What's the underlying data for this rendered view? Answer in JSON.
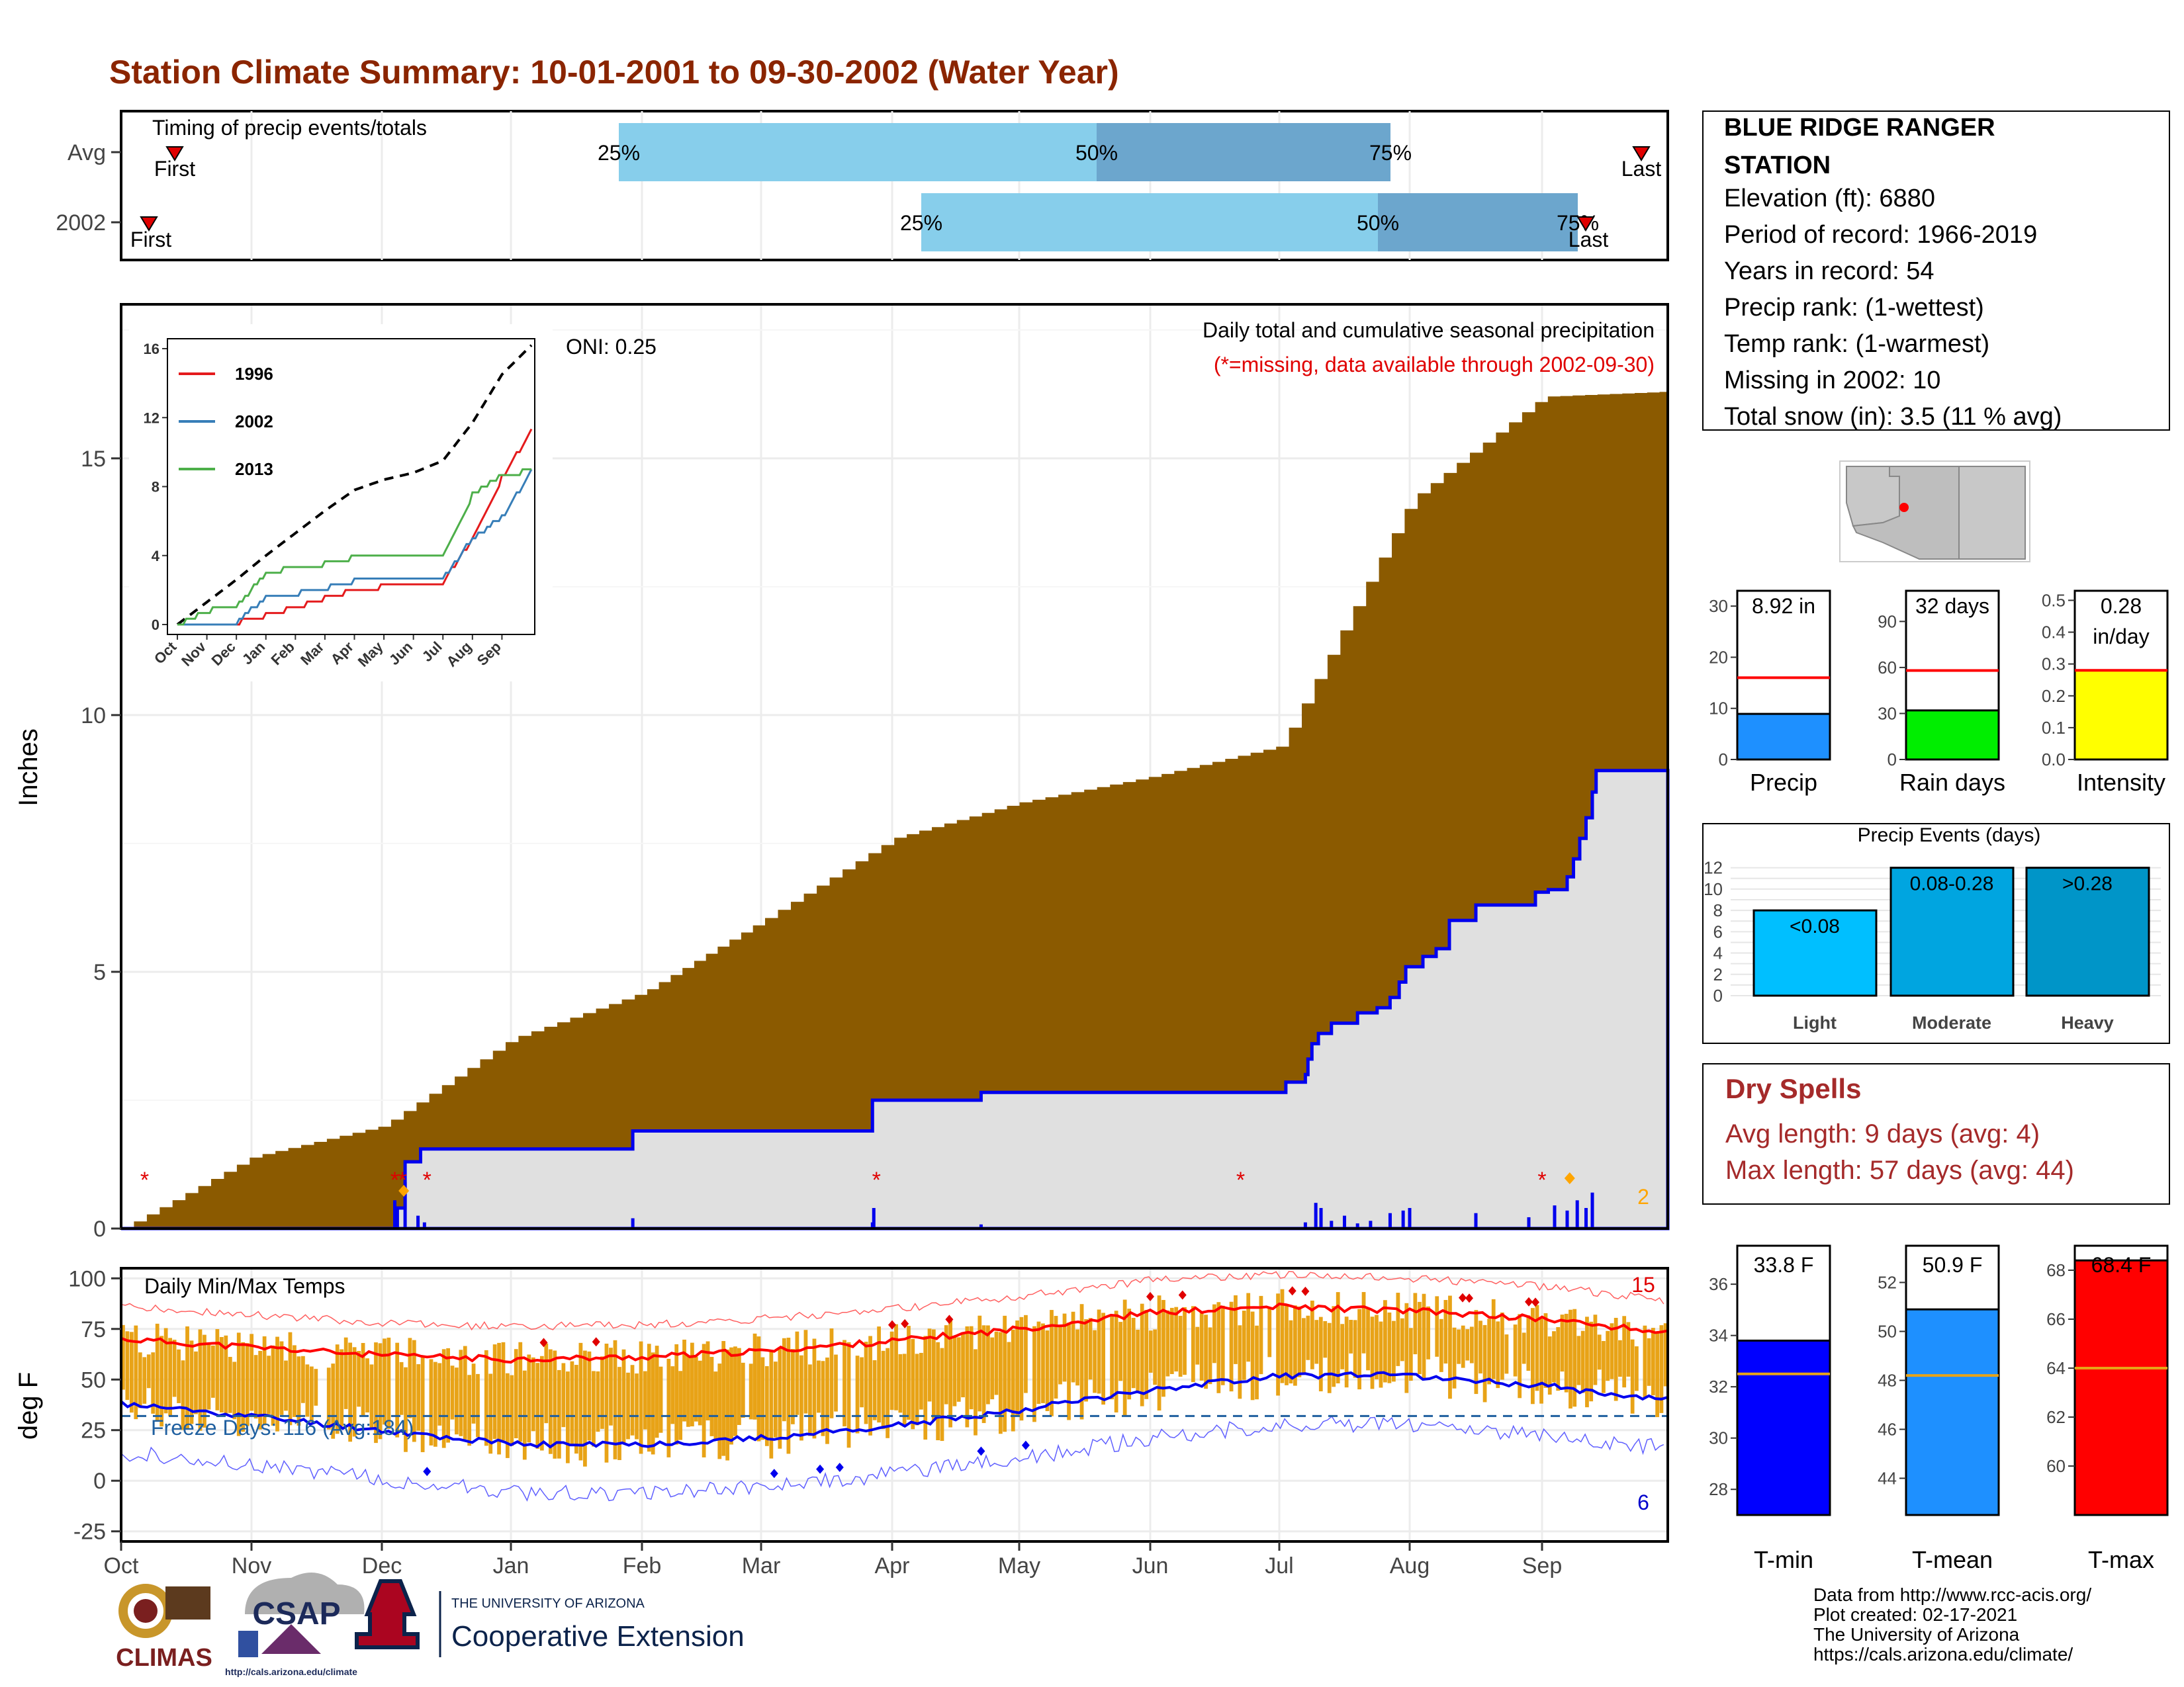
{
  "title": "Station Climate Summary: 10-01-2001 to 09-30-2002 (Water Year)",
  "colors": {
    "title": "#8B2500",
    "brown": "#8B5A00",
    "grey": "#E0E0E0",
    "blue": "#0000EE",
    "lightblue": "#87CEEB",
    "midblue": "#6CA6CD",
    "orange": "#E8A317",
    "red": "#FF0000"
  },
  "timing": {
    "label": "Timing of precip events/totals",
    "rows": [
      "Avg",
      "2002"
    ],
    "first_label": "First",
    "last_label": "Last",
    "pct_labels": [
      "25%",
      "50%",
      "75%"
    ]
  },
  "station": {
    "name": "BLUE RIDGE RANGER",
    "name2": "STATION",
    "lines": [
      "Elevation (ft): 6880",
      "Period of record: 1966-2019",
      "Years in record: 54",
      "Precip rank:  (1-wettest)",
      "Temp rank:  (1-warmest)",
      "Missing in 2002: 10",
      "Total snow (in): 3.5 (11 % avg)"
    ]
  },
  "main_panel": {
    "ylabel": "Inches",
    "oni": "ONI: 0.25",
    "desc1": "Daily total and cumulative seasonal precipitation",
    "desc2": "(*=missing, data available through 2002-09-30)",
    "yticks": [
      "0",
      "5",
      "10",
      "15"
    ],
    "count_label": "2"
  },
  "inset": {
    "series_names": [
      "1996",
      "2002",
      "2013"
    ],
    "yticks": [
      "0",
      "4",
      "8",
      "12",
      "16"
    ],
    "months": [
      "Oct",
      "Nov",
      "Dec",
      "Jan",
      "Feb",
      "Mar",
      "Apr",
      "May",
      "Jun",
      "Jul",
      "Aug",
      "Sep"
    ]
  },
  "temp_panel": {
    "ylabel": "deg F",
    "label": "Daily Min/Max Temps",
    "freeze": "Freeze Days: 116 (Avg:184)",
    "yticks": [
      "100",
      "75",
      "50",
      "25",
      "0",
      "-25"
    ],
    "max_count": "15",
    "min_count": "6"
  },
  "x_months": [
    "Oct",
    "Nov",
    "Dec",
    "Jan",
    "Feb",
    "Mar",
    "Apr",
    "May",
    "Jun",
    "Jul",
    "Aug",
    "Sep"
  ],
  "bars_precip": {
    "value_label": "8.92 in",
    "axis_label": "Precip",
    "ticks": [
      "0",
      "10",
      "20",
      "30"
    ]
  },
  "bars_raindays": {
    "value_label": "32 days",
    "axis_label": "Rain days",
    "ticks": [
      "0",
      "30",
      "60",
      "90"
    ]
  },
  "bars_intensity": {
    "value_label": "0.28",
    "value_label2": "in/day",
    "axis_label": "Intensity",
    "ticks": [
      "0.0",
      "0.1",
      "0.2",
      "0.3",
      "0.4",
      "0.5"
    ]
  },
  "events": {
    "title": "Precip Events (days)",
    "cats": [
      "Light",
      "Moderate",
      "Heavy"
    ],
    "labels": [
      "<0.08",
      "0.08-0.28",
      ">0.28"
    ],
    "ticks": [
      "0",
      "2",
      "4",
      "6",
      "8",
      "10",
      "12"
    ]
  },
  "dry": {
    "title": "Dry Spells",
    "line1": "Avg length: 9 days (avg: 4)",
    "line2": "Max length: 57 days (avg: 44)"
  },
  "tbars": [
    {
      "label": "T-min",
      "value_label": "33.8 F",
      "ticks": [
        "28",
        "30",
        "32",
        "34",
        "36"
      ]
    },
    {
      "label": "T-mean",
      "value_label": "50.9 F",
      "ticks": [
        "44",
        "46",
        "48",
        "50",
        "52"
      ]
    },
    {
      "label": "T-max",
      "value_label": "68.4 F",
      "ticks": [
        "60",
        "62",
        "64",
        "66",
        "68"
      ]
    }
  ],
  "credits": [
    "Data from http://www.rcc-acis.org/",
    "Plot created: 02-17-2021",
    "The University of Arizona",
    "https://cals.arizona.edu/climate/"
  ],
  "logos": {
    "climas": "CLIMAS",
    "csap": "CSAP",
    "csap_url": "http://cals.arizona.edu/climate",
    "ua_small": "THE UNIVERSITY OF ARIZONA",
    "ua_big": "Cooperative Extension"
  },
  "chart_data": [
    {
      "type": "area",
      "title": "Daily total and cumulative seasonal precipitation",
      "ylabel": "Inches",
      "ylim": [
        0,
        18
      ],
      "x": [
        "Oct",
        "Nov",
        "Dec",
        "Jan",
        "Feb",
        "Mar",
        "Apr",
        "May",
        "Jun",
        "Jul",
        "Aug",
        "Sep",
        "Sep-30"
      ],
      "series": [
        {
          "name": "",
          "values": [
            0,
            1.4,
            2.0,
            3.7,
            4.6,
            6.0,
            7.6,
            8.3,
            8.8,
            9.4,
            14.2,
            16.2,
            16.3
          ]
        },
        {
          "name": "",
          "values": [
            0,
            0,
            0,
            1.55,
            1.9,
            2.0,
            2.5,
            2.6,
            2.6,
            2.6,
            5.0,
            6.2,
            8.92
          ]
        }
      ]
    },
    {
      "type": "line",
      "title": "",
      "ylim": [
        0,
        16
      ],
      "x": [
        "Oct",
        "Nov",
        "Dec",
        "Jan",
        "Feb",
        "Mar",
        "Apr",
        "May",
        "Jun",
        "Jul",
        "Aug",
        "Sep",
        "Sep-30"
      ],
      "series": [
        {
          "name": "",
          "values": [
            0,
            1.3,
            2.6,
            4.0,
            5.3,
            6.6,
            7.8,
            8.4,
            8.8,
            9.5,
            11.7,
            14.5,
            16.2
          ]
        },
        {
          "name": "1996",
          "values": [
            0,
            0,
            0.1,
            0.5,
            1.0,
            1.5,
            2.0,
            2.2,
            2.3,
            2.4,
            5.0,
            8.5,
            11.2
          ]
        },
        {
          "name": "2002",
          "values": [
            0,
            0,
            0.1,
            1.6,
            1.8,
            2.1,
            2.5,
            2.6,
            2.6,
            2.6,
            5.0,
            6.2,
            8.9
          ]
        },
        {
          "name": "2013",
          "values": [
            0,
            0.8,
            1.0,
            3.0,
            3.3,
            3.5,
            3.9,
            3.9,
            3.9,
            4.0,
            7.5,
            8.7,
            8.9
          ]
        }
      ]
    },
    {
      "type": "line",
      "title": "Daily Min/Max Temps",
      "ylabel": "deg F",
      "ylim": [
        -28,
        100
      ],
      "x": [
        "Oct",
        "Nov",
        "Dec",
        "Jan",
        "Feb",
        "Mar",
        "Apr",
        "May",
        "Jun",
        "Jul",
        "Aug",
        "Sep",
        "Sep-30"
      ],
      "series": [
        {
          "name": "",
          "values": [
            70,
            66,
            62,
            60,
            61,
            64,
            69,
            75,
            83,
            86,
            84,
            80,
            73
          ]
        },
        {
          "name": "",
          "values": [
            38,
            32,
            25,
            18,
            18,
            21,
            27,
            35,
            45,
            52,
            52,
            47,
            40
          ]
        }
      ]
    },
    {
      "type": "bar",
      "categories": [
        "Precip",
        "Rain days",
        "Intensity"
      ],
      "values": [
        8.92,
        32,
        0.28
      ],
      "averages": [
        16,
        58,
        0.28
      ]
    },
    {
      "type": "bar",
      "title": "Precip Events (days)",
      "categories": [
        "Light",
        "Moderate",
        "Heavy"
      ],
      "values": [
        8,
        12,
        12
      ]
    },
    {
      "type": "bar",
      "categories": [
        "T-min",
        "T-mean",
        "T-max"
      ],
      "values": [
        33.8,
        50.9,
        68.4
      ],
      "averages": [
        32.5,
        48.2,
        64
      ]
    }
  ]
}
